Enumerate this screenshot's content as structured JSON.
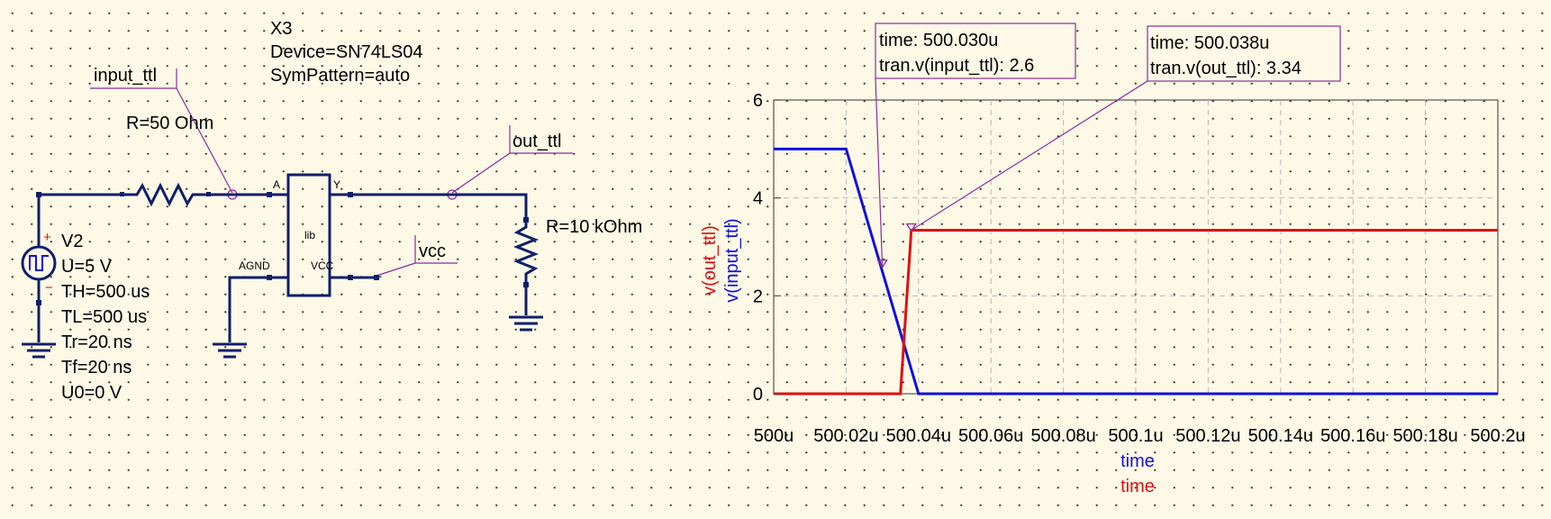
{
  "schematic": {
    "inverter": {
      "name": "X3",
      "device": "Device=SN74LS04",
      "sympattern": "SymPattern=auto",
      "body_text": "lib",
      "pin_a": "A",
      "pin_y": "Y",
      "pin_agnd": "AGND",
      "pin_vcc": "VCC"
    },
    "source": {
      "name": "V2",
      "params": [
        "U=5 V",
        "TH=500 us",
        "TL=500 us",
        "Tr=20 ns",
        "Tf=20 ns",
        "U0=0 V"
      ]
    },
    "r_series": "R=50 Ohm",
    "r_load": "R=10 kOhm",
    "labels": {
      "input": "input_ttl",
      "output": "out_ttl",
      "vcc": "vcc"
    }
  },
  "markers": [
    {
      "line1": "time: 500.030u",
      "line2": "tran.v(input_ttl): 2.6"
    },
    {
      "line1": "time: 500.038u",
      "line2": "tran.v(out_ttl): 3.34"
    }
  ],
  "colors": {
    "wire": "#0f1f6b",
    "series_input": "#1010e0",
    "series_output": "#e01010",
    "marker": "#8a2c9a"
  },
  "chart_data": {
    "type": "line",
    "x_ticks": [
      "500u",
      "500.02u",
      "500.04u",
      "500.06u",
      "500.08u",
      "500.1u",
      "500.12u",
      "500.14u",
      "500.16u",
      "500.18u",
      "500.2u"
    ],
    "y_ticks": [
      "0",
      "2",
      "4",
      "6"
    ],
    "xlim": [
      500.0,
      500.2
    ],
    "ylim": [
      0,
      6
    ],
    "xlabels": [
      "time",
      "time"
    ],
    "ylabels": [
      "v(out_ttl)",
      "v(input_ttl)"
    ],
    "grid": true,
    "series": [
      {
        "name": "v(input_ttl)",
        "color": "#1010e0",
        "x": [
          500.0,
          500.02,
          500.04,
          500.2
        ],
        "y": [
          5.0,
          5.0,
          0.0,
          0.0
        ]
      },
      {
        "name": "v(out_ttl)",
        "color": "#e01010",
        "x": [
          500.0,
          500.035,
          500.038,
          500.2
        ],
        "y": [
          0.0,
          0.0,
          3.34,
          3.34
        ]
      }
    ],
    "markers": [
      {
        "x": 500.03,
        "y": 2.6
      },
      {
        "x": 500.038,
        "y": 3.34
      }
    ]
  }
}
